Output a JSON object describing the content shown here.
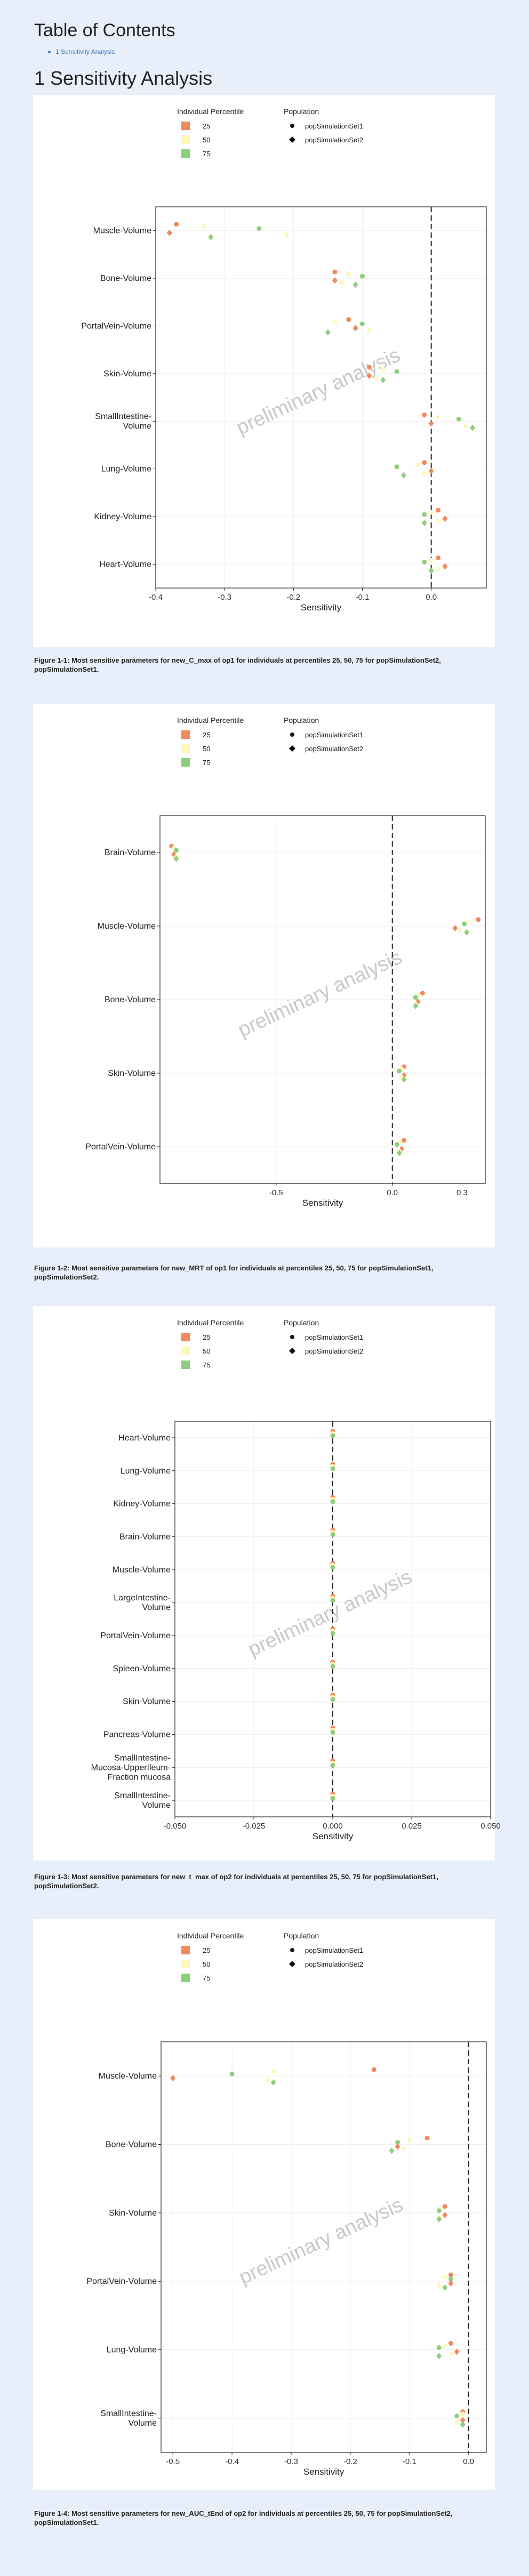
{
  "toc": {
    "title": "Table of Contents",
    "link": "1 Sensitivity Analysis"
  },
  "section": {
    "title": "1 Sensitivity Analysis"
  },
  "legend": {
    "percentile_title": "Individual Percentile",
    "population_title": "Population",
    "percentiles": [
      {
        "label": "25",
        "color": "#f08a5d"
      },
      {
        "label": "50",
        "color": "#fcf8c0"
      },
      {
        "label": "75",
        "color": "#8fce7e"
      }
    ],
    "populations": [
      {
        "label": "popSimulationSet1",
        "shape": "circle"
      },
      {
        "label": "popSimulationSet2",
        "shape": "diamond"
      }
    ]
  },
  "watermark": "preliminary analysis",
  "chart_data": [
    {
      "type": "scatter",
      "xlabel": "Sensitivity",
      "xlim": [
        -0.4,
        0.08
      ],
      "xticks": [
        -0.4,
        -0.3,
        -0.2,
        -0.1,
        0.0
      ],
      "xtick_labels": [
        "-0.4",
        "-0.3",
        "-0.2",
        "-0.1",
        "0.0"
      ],
      "categories": [
        "Muscle-Volume",
        "Bone-Volume",
        "PortalVein-Volume",
        "Skin-Volume",
        "SmallIntestine-Volume",
        "Lung-Volume",
        "Kidney-Volume",
        "Heart-Volume"
      ],
      "category_labels": [
        [
          "Muscle-Volume"
        ],
        [
          "Bone-Volume"
        ],
        [
          "PortalVein-Volume"
        ],
        [
          "Skin-Volume"
        ],
        [
          "SmallIntestine-",
          "Volume"
        ],
        [
          "Lung-Volume"
        ],
        [
          "Kidney-Volume"
        ],
        [
          "Heart-Volume"
        ]
      ],
      "points": [
        {
          "c": 0,
          "p": 0,
          "s": 0,
          "x": -0.37
        },
        {
          "c": 0,
          "p": 1,
          "s": 0,
          "x": -0.33
        },
        {
          "c": 0,
          "p": 2,
          "s": 0,
          "x": -0.25
        },
        {
          "c": 0,
          "p": 0,
          "s": 1,
          "x": -0.38
        },
        {
          "c": 0,
          "p": 1,
          "s": 1,
          "x": -0.21
        },
        {
          "c": 0,
          "p": 2,
          "s": 1,
          "x": -0.32
        },
        {
          "c": 1,
          "p": 0,
          "s": 0,
          "x": -0.14
        },
        {
          "c": 1,
          "p": 1,
          "s": 0,
          "x": -0.12
        },
        {
          "c": 1,
          "p": 2,
          "s": 0,
          "x": -0.1
        },
        {
          "c": 1,
          "p": 0,
          "s": 1,
          "x": -0.14
        },
        {
          "c": 1,
          "p": 1,
          "s": 1,
          "x": -0.13
        },
        {
          "c": 1,
          "p": 2,
          "s": 1,
          "x": -0.11
        },
        {
          "c": 2,
          "p": 0,
          "s": 0,
          "x": -0.12
        },
        {
          "c": 2,
          "p": 1,
          "s": 0,
          "x": -0.14
        },
        {
          "c": 2,
          "p": 2,
          "s": 0,
          "x": -0.1
        },
        {
          "c": 2,
          "p": 0,
          "s": 1,
          "x": -0.11
        },
        {
          "c": 2,
          "p": 1,
          "s": 1,
          "x": -0.09
        },
        {
          "c": 2,
          "p": 2,
          "s": 1,
          "x": -0.15
        },
        {
          "c": 3,
          "p": 0,
          "s": 0,
          "x": -0.09
        },
        {
          "c": 3,
          "p": 1,
          "s": 0,
          "x": -0.07
        },
        {
          "c": 3,
          "p": 2,
          "s": 0,
          "x": -0.05
        },
        {
          "c": 3,
          "p": 0,
          "s": 1,
          "x": -0.09
        },
        {
          "c": 3,
          "p": 1,
          "s": 1,
          "x": -0.08
        },
        {
          "c": 3,
          "p": 2,
          "s": 1,
          "x": -0.07
        },
        {
          "c": 4,
          "p": 0,
          "s": 0,
          "x": -0.01
        },
        {
          "c": 4,
          "p": 1,
          "s": 0,
          "x": 0.01
        },
        {
          "c": 4,
          "p": 2,
          "s": 0,
          "x": 0.04
        },
        {
          "c": 4,
          "p": 0,
          "s": 1,
          "x": 0.0
        },
        {
          "c": 4,
          "p": 1,
          "s": 1,
          "x": 0.05
        },
        {
          "c": 4,
          "p": 2,
          "s": 1,
          "x": 0.06
        },
        {
          "c": 5,
          "p": 0,
          "s": 0,
          "x": -0.01
        },
        {
          "c": 5,
          "p": 1,
          "s": 0,
          "x": -0.02
        },
        {
          "c": 5,
          "p": 2,
          "s": 0,
          "x": -0.05
        },
        {
          "c": 5,
          "p": 0,
          "s": 1,
          "x": 0.0
        },
        {
          "c": 5,
          "p": 1,
          "s": 1,
          "x": -0.01
        },
        {
          "c": 5,
          "p": 2,
          "s": 1,
          "x": -0.04
        },
        {
          "c": 6,
          "p": 0,
          "s": 0,
          "x": 0.01
        },
        {
          "c": 6,
          "p": 1,
          "s": 0,
          "x": 0.0
        },
        {
          "c": 6,
          "p": 2,
          "s": 0,
          "x": -0.01
        },
        {
          "c": 6,
          "p": 0,
          "s": 1,
          "x": 0.02
        },
        {
          "c": 6,
          "p": 1,
          "s": 1,
          "x": 0.01
        },
        {
          "c": 6,
          "p": 2,
          "s": 1,
          "x": -0.01
        },
        {
          "c": 7,
          "p": 0,
          "s": 0,
          "x": 0.01
        },
        {
          "c": 7,
          "p": 1,
          "s": 0,
          "x": 0.0
        },
        {
          "c": 7,
          "p": 2,
          "s": 0,
          "x": -0.01
        },
        {
          "c": 7,
          "p": 0,
          "s": 1,
          "x": 0.02
        },
        {
          "c": 7,
          "p": 1,
          "s": 1,
          "x": 0.01
        },
        {
          "c": 7,
          "p": 2,
          "s": 1,
          "x": 0.0
        }
      ]
    },
    {
      "type": "scatter",
      "xlabel": "Sensitivity",
      "xlim": [
        -1.0,
        0.4
      ],
      "xticks": [
        -0.5,
        0.0,
        0.3
      ],
      "xtick_labels": [
        "-0.5",
        "0.0",
        "0.3"
      ],
      "categories": [
        "Brain-Volume",
        "Muscle-Volume",
        "Bone-Volume",
        "Skin-Volume",
        "PortalVein-Volume"
      ],
      "category_labels": [
        [
          "Brain-Volume"
        ],
        [
          "Muscle-Volume"
        ],
        [
          "Bone-Volume"
        ],
        [
          "Skin-Volume"
        ],
        [
          "PortalVein-Volume"
        ]
      ],
      "points": [
        {
          "c": 0,
          "p": 0,
          "s": 0,
          "x": -0.95
        },
        {
          "c": 0,
          "p": 1,
          "s": 0,
          "x": -0.94
        },
        {
          "c": 0,
          "p": 2,
          "s": 0,
          "x": -0.93
        },
        {
          "c": 0,
          "p": 0,
          "s": 1,
          "x": -0.94
        },
        {
          "c": 0,
          "p": 1,
          "s": 1,
          "x": -0.93
        },
        {
          "c": 0,
          "p": 2,
          "s": 1,
          "x": -0.93
        },
        {
          "c": 1,
          "p": 0,
          "s": 0,
          "x": 0.37
        },
        {
          "c": 1,
          "p": 1,
          "s": 0,
          "x": 0.33
        },
        {
          "c": 1,
          "p": 2,
          "s": 0,
          "x": 0.31
        },
        {
          "c": 1,
          "p": 0,
          "s": 1,
          "x": 0.27
        },
        {
          "c": 1,
          "p": 1,
          "s": 1,
          "x": 0.29
        },
        {
          "c": 1,
          "p": 2,
          "s": 1,
          "x": 0.32
        },
        {
          "c": 2,
          "p": 0,
          "s": 0,
          "x": 0.13
        },
        {
          "c": 2,
          "p": 1,
          "s": 0,
          "x": 0.11
        },
        {
          "c": 2,
          "p": 2,
          "s": 0,
          "x": 0.1
        },
        {
          "c": 2,
          "p": 0,
          "s": 1,
          "x": 0.11
        },
        {
          "c": 2,
          "p": 1,
          "s": 1,
          "x": 0.1
        },
        {
          "c": 2,
          "p": 2,
          "s": 1,
          "x": 0.1
        },
        {
          "c": 3,
          "p": 0,
          "s": 0,
          "x": 0.05
        },
        {
          "c": 3,
          "p": 1,
          "s": 0,
          "x": 0.04
        },
        {
          "c": 3,
          "p": 2,
          "s": 0,
          "x": 0.03
        },
        {
          "c": 3,
          "p": 0,
          "s": 1,
          "x": 0.05
        },
        {
          "c": 3,
          "p": 1,
          "s": 1,
          "x": 0.04
        },
        {
          "c": 3,
          "p": 2,
          "s": 1,
          "x": 0.05
        },
        {
          "c": 4,
          "p": 0,
          "s": 0,
          "x": 0.05
        },
        {
          "c": 4,
          "p": 1,
          "s": 0,
          "x": 0.03
        },
        {
          "c": 4,
          "p": 2,
          "s": 0,
          "x": 0.02
        },
        {
          "c": 4,
          "p": 0,
          "s": 1,
          "x": 0.04
        },
        {
          "c": 4,
          "p": 1,
          "s": 1,
          "x": 0.03
        },
        {
          "c": 4,
          "p": 2,
          "s": 1,
          "x": 0.03
        }
      ]
    },
    {
      "type": "scatter",
      "xlabel": "Sensitivity",
      "xlim": [
        -0.05,
        0.05
      ],
      "xticks": [
        -0.05,
        -0.025,
        0.0,
        0.025,
        0.05
      ],
      "xtick_labels": [
        "-0.050",
        "-0.025",
        "0.000",
        "0.025",
        "0.050"
      ],
      "categories": [
        "Heart-Volume",
        "Lung-Volume",
        "Kidney-Volume",
        "Brain-Volume",
        "Muscle-Volume",
        "LargeIntestine-Volume",
        "PortalVein-Volume",
        "Spleen-Volume",
        "Skin-Volume",
        "Pancreas-Volume",
        "SmallIntestine-Mucosa-UpperIleum-Fraction mucosa",
        "SmallIntestine-Volume"
      ],
      "category_labels": [
        [
          "Heart-Volume"
        ],
        [
          "Lung-Volume"
        ],
        [
          "Kidney-Volume"
        ],
        [
          "Brain-Volume"
        ],
        [
          "Muscle-Volume"
        ],
        [
          "LargeIntestine-",
          "Volume"
        ],
        [
          "PortalVein-Volume"
        ],
        [
          "Spleen-Volume"
        ],
        [
          "Skin-Volume"
        ],
        [
          "Pancreas-Volume"
        ],
        [
          "SmallIntestine-",
          "Mucosa-UpperIleum-",
          "Fraction mucosa"
        ],
        [
          "SmallIntestine-",
          "Volume"
        ]
      ],
      "points": [
        {
          "c": 0,
          "p": 0,
          "s": 0,
          "x": 0.0
        },
        {
          "c": 0,
          "p": 1,
          "s": 0,
          "x": 0.0
        },
        {
          "c": 0,
          "p": 2,
          "s": 0,
          "x": 0.0
        },
        {
          "c": 1,
          "p": 0,
          "s": 0,
          "x": 0.0
        },
        {
          "c": 1,
          "p": 1,
          "s": 0,
          "x": 0.0
        },
        {
          "c": 1,
          "p": 2,
          "s": 0,
          "x": 0.0
        },
        {
          "c": 2,
          "p": 0,
          "s": 0,
          "x": 0.0
        },
        {
          "c": 2,
          "p": 1,
          "s": 0,
          "x": 0.0
        },
        {
          "c": 2,
          "p": 2,
          "s": 0,
          "x": 0.0
        },
        {
          "c": 3,
          "p": 0,
          "s": 0,
          "x": 0.0
        },
        {
          "c": 3,
          "p": 1,
          "s": 0,
          "x": 0.0
        },
        {
          "c": 3,
          "p": 2,
          "s": 0,
          "x": 0.0
        },
        {
          "c": 4,
          "p": 0,
          "s": 0,
          "x": 0.0
        },
        {
          "c": 4,
          "p": 1,
          "s": 0,
          "x": 0.0
        },
        {
          "c": 4,
          "p": 2,
          "s": 0,
          "x": 0.0
        },
        {
          "c": 5,
          "p": 0,
          "s": 0,
          "x": 0.0
        },
        {
          "c": 5,
          "p": 1,
          "s": 0,
          "x": 0.0
        },
        {
          "c": 5,
          "p": 2,
          "s": 0,
          "x": 0.0
        },
        {
          "c": 6,
          "p": 0,
          "s": 0,
          "x": 0.0
        },
        {
          "c": 6,
          "p": 1,
          "s": 0,
          "x": 0.0
        },
        {
          "c": 6,
          "p": 2,
          "s": 0,
          "x": 0.0
        },
        {
          "c": 7,
          "p": 0,
          "s": 0,
          "x": 0.0
        },
        {
          "c": 7,
          "p": 1,
          "s": 0,
          "x": 0.0
        },
        {
          "c": 7,
          "p": 2,
          "s": 0,
          "x": 0.0
        },
        {
          "c": 8,
          "p": 0,
          "s": 0,
          "x": 0.0
        },
        {
          "c": 8,
          "p": 1,
          "s": 0,
          "x": 0.0
        },
        {
          "c": 8,
          "p": 2,
          "s": 0,
          "x": 0.0
        },
        {
          "c": 9,
          "p": 0,
          "s": 0,
          "x": 0.0
        },
        {
          "c": 9,
          "p": 1,
          "s": 0,
          "x": 0.0
        },
        {
          "c": 9,
          "p": 2,
          "s": 0,
          "x": 0.0
        },
        {
          "c": 10,
          "p": 0,
          "s": 0,
          "x": 0.0
        },
        {
          "c": 10,
          "p": 1,
          "s": 0,
          "x": 0.0
        },
        {
          "c": 10,
          "p": 2,
          "s": 0,
          "x": 0.0
        },
        {
          "c": 11,
          "p": 0,
          "s": 0,
          "x": 0.0
        },
        {
          "c": 11,
          "p": 1,
          "s": 0,
          "x": 0.0
        },
        {
          "c": 11,
          "p": 2,
          "s": 0,
          "x": 0.0
        }
      ]
    },
    {
      "type": "scatter",
      "xlabel": "Sensitivity",
      "xlim": [
        -0.52,
        0.03
      ],
      "xticks": [
        -0.5,
        -0.4,
        -0.3,
        -0.2,
        -0.1,
        0.0
      ],
      "xtick_labels": [
        "-0.5",
        "-0.4",
        "-0.3",
        "-0.2",
        "-0.1",
        "0.0"
      ],
      "categories": [
        "Muscle-Volume",
        "Bone-Volume",
        "Skin-Volume",
        "PortalVein-Volume",
        "Lung-Volume",
        "SmallIntestine-Volume"
      ],
      "category_labels": [
        [
          "Muscle-Volume"
        ],
        [
          "Bone-Volume"
        ],
        [
          "Skin-Volume"
        ],
        [
          "PortalVein-Volume"
        ],
        [
          "Lung-Volume"
        ],
        [
          "SmallIntestine-",
          "Volume"
        ]
      ],
      "points": [
        {
          "c": 0,
          "p": 0,
          "s": 0,
          "x": -0.16
        },
        {
          "c": 0,
          "p": 1,
          "s": 0,
          "x": -0.33
        },
        {
          "c": 0,
          "p": 2,
          "s": 0,
          "x": -0.4
        },
        {
          "c": 0,
          "p": 0,
          "s": 1,
          "x": -0.5
        },
        {
          "c": 0,
          "p": 1,
          "s": 1,
          "x": -0.34
        },
        {
          "c": 0,
          "p": 2,
          "s": 1,
          "x": -0.33
        },
        {
          "c": 1,
          "p": 0,
          "s": 0,
          "x": -0.07
        },
        {
          "c": 1,
          "p": 1,
          "s": 0,
          "x": -0.1
        },
        {
          "c": 1,
          "p": 2,
          "s": 0,
          "x": -0.12
        },
        {
          "c": 1,
          "p": 0,
          "s": 1,
          "x": -0.12
        },
        {
          "c": 1,
          "p": 1,
          "s": 1,
          "x": -0.11
        },
        {
          "c": 1,
          "p": 2,
          "s": 1,
          "x": -0.13
        },
        {
          "c": 2,
          "p": 0,
          "s": 0,
          "x": -0.04
        },
        {
          "c": 2,
          "p": 1,
          "s": 0,
          "x": -0.05
        },
        {
          "c": 2,
          "p": 2,
          "s": 0,
          "x": -0.05
        },
        {
          "c": 2,
          "p": 0,
          "s": 1,
          "x": -0.04
        },
        {
          "c": 2,
          "p": 1,
          "s": 1,
          "x": -0.05
        },
        {
          "c": 2,
          "p": 2,
          "s": 1,
          "x": -0.05
        },
        {
          "c": 3,
          "p": 0,
          "s": 0,
          "x": -0.03
        },
        {
          "c": 3,
          "p": 1,
          "s": 0,
          "x": -0.04
        },
        {
          "c": 3,
          "p": 2,
          "s": 0,
          "x": -0.03
        },
        {
          "c": 3,
          "p": 0,
          "s": 1,
          "x": -0.03
        },
        {
          "c": 3,
          "p": 1,
          "s": 1,
          "x": -0.05
        },
        {
          "c": 3,
          "p": 2,
          "s": 1,
          "x": -0.04
        },
        {
          "c": 4,
          "p": 0,
          "s": 0,
          "x": -0.03
        },
        {
          "c": 4,
          "p": 1,
          "s": 0,
          "x": -0.04
        },
        {
          "c": 4,
          "p": 2,
          "s": 0,
          "x": -0.05
        },
        {
          "c": 4,
          "p": 0,
          "s": 1,
          "x": -0.02
        },
        {
          "c": 4,
          "p": 1,
          "s": 1,
          "x": -0.03
        },
        {
          "c": 4,
          "p": 2,
          "s": 1,
          "x": -0.05
        },
        {
          "c": 5,
          "p": 0,
          "s": 0,
          "x": -0.01
        },
        {
          "c": 5,
          "p": 1,
          "s": 0,
          "x": -0.01
        },
        {
          "c": 5,
          "p": 2,
          "s": 0,
          "x": -0.02
        },
        {
          "c": 5,
          "p": 0,
          "s": 1,
          "x": -0.01
        },
        {
          "c": 5,
          "p": 1,
          "s": 1,
          "x": -0.02
        },
        {
          "c": 5,
          "p": 2,
          "s": 1,
          "x": -0.01
        }
      ]
    }
  ],
  "captions": [
    "Figure 1-1: Most sensitive parameters for new_C_max of op1 for individuals at percentiles 25, 50, 75 for popSimulationSet2, popSimulationSet1.",
    "Figure 1-2: Most sensitive parameters for new_MRT of op1 for individuals at percentiles 25, 50, 75 for popSimulationSet1, popSimulationSet2.",
    "Figure 1-3: Most sensitive parameters for new_t_max of op2 for individuals at percentiles 25, 50, 75 for popSimulationSet1, popSimulationSet2.",
    "Figure 1-4: Most sensitive parameters for new_AUC_tEnd of op2 for individuals at percentiles 25, 50, 75 for popSimulationSet2, popSimulationSet1."
  ]
}
